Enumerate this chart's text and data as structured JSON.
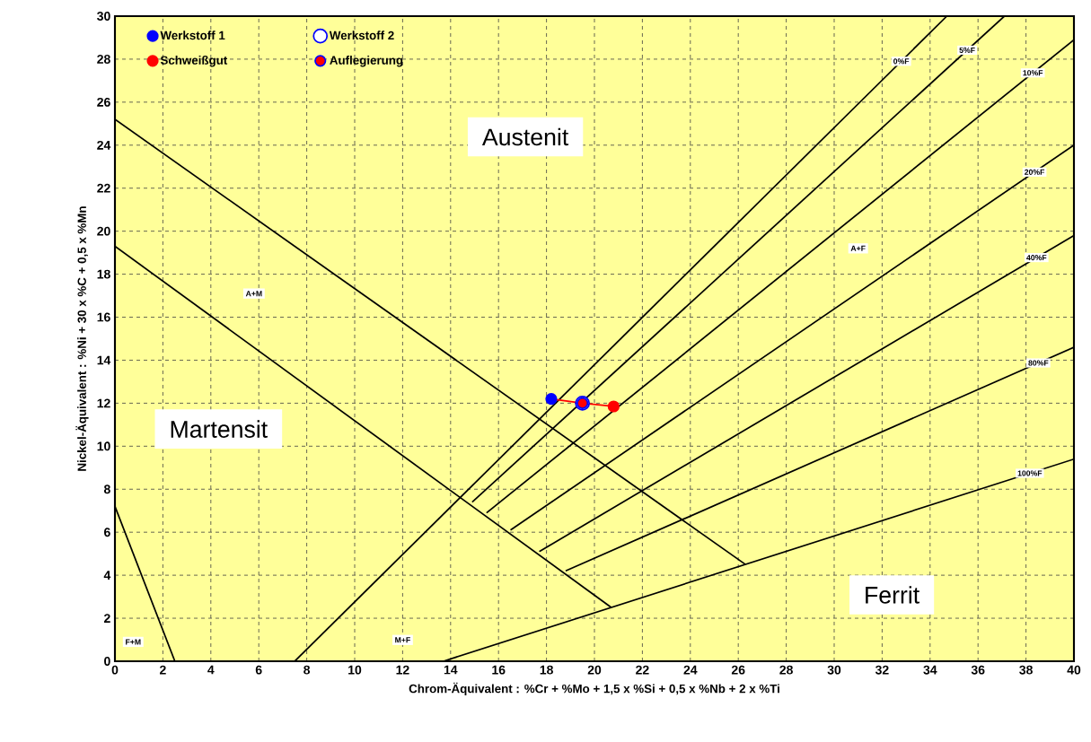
{
  "chart_data": {
    "type": "line",
    "xlabel": "Chrom-Äquivalent  :  %Cr  +  %Mo  +  1,5 x %Si  +  0,5 x %Nb  +  2 x %Ti",
    "ylabel": "Nickel-Äquivalent  :  %Ni  +  30 x %C  +  0,5 x %Mn",
    "xlim": [
      0,
      40
    ],
    "ylim": [
      0,
      30
    ],
    "xticks": [
      0,
      2,
      4,
      6,
      8,
      10,
      12,
      14,
      16,
      18,
      20,
      22,
      24,
      26,
      28,
      30,
      32,
      34,
      36,
      38,
      40
    ],
    "yticks": [
      0,
      2,
      4,
      6,
      8,
      10,
      12,
      14,
      16,
      18,
      20,
      22,
      24,
      26,
      28,
      30
    ],
    "grid": true,
    "legend": "top left",
    "series": [
      {
        "color": "#000000",
        "x": [
          0,
          26.3
        ],
        "values": [
          25.2,
          4.5
        ]
      },
      {
        "color": "#000000",
        "x": [
          0,
          20.7
        ],
        "values": [
          19.3,
          2.5
        ]
      },
      {
        "color": "#000000",
        "x": [
          0,
          2.5
        ],
        "values": [
          7.2,
          0
        ]
      },
      {
        "color": "#000000",
        "name": "0%F",
        "x": [
          7.5,
          34.7
        ],
        "values": [
          0,
          30
        ]
      },
      {
        "color": "#000000",
        "name": "5%F",
        "x": [
          14.9,
          37.1
        ],
        "values": [
          7.4,
          30
        ]
      },
      {
        "color": "#000000",
        "name": "10%F",
        "x": [
          15.5,
          40
        ],
        "values": [
          6.9,
          28.9
        ]
      },
      {
        "color": "#000000",
        "name": "20%F",
        "x": [
          16.5,
          40
        ],
        "values": [
          6.1,
          24.0
        ]
      },
      {
        "color": "#000000",
        "name": "40%F",
        "x": [
          17.7,
          40
        ],
        "values": [
          5.1,
          19.8
        ]
      },
      {
        "color": "#000000",
        "name": "80%F",
        "x": [
          18.8,
          40
        ],
        "values": [
          4.2,
          14.6
        ]
      },
      {
        "color": "#000000",
        "name": "100%F",
        "x": [
          13.7,
          40
        ],
        "values": [
          0,
          9.4
        ]
      },
      {
        "color": "#ff0000",
        "x": [
          18.2,
          19.5,
          20.8
        ],
        "values": [
          12.2,
          12.0,
          11.85
        ]
      },
      {
        "type": "scatter",
        "name": "Werkstoff 1",
        "color": "#0000ff",
        "x": [
          18.2
        ],
        "values": [
          12.2
        ]
      },
      {
        "type": "scatter",
        "name": "Werkstoff 2",
        "color": "#0000ff",
        "x": [
          19.5
        ],
        "values": [
          12.0
        ]
      },
      {
        "type": "scatter",
        "name": "Schweißgut",
        "color": "#ff0000",
        "x": [
          20.8
        ],
        "values": [
          11.85
        ]
      },
      {
        "type": "scatter",
        "name": "Auflegierung",
        "color": "#ff0000",
        "x": [
          19.5
        ],
        "values": [
          12.0
        ]
      }
    ],
    "annotations": [
      "Austenit",
      "Martensit",
      "Ferrit",
      "A+M",
      "A+F",
      "F+M",
      "M+F"
    ]
  }
}
